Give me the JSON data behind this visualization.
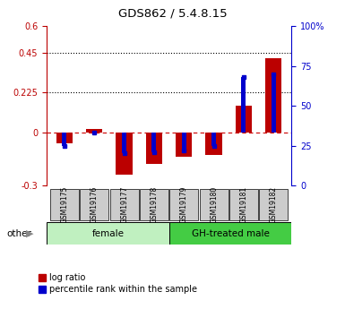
{
  "title": "GDS862 / 5.4.8.15",
  "samples": [
    "GSM19175",
    "GSM19176",
    "GSM19177",
    "GSM19178",
    "GSM19179",
    "GSM19180",
    "GSM19181",
    "GSM19182"
  ],
  "log_ratio": [
    -0.06,
    0.02,
    -0.24,
    -0.18,
    -0.14,
    -0.13,
    0.15,
    0.42
  ],
  "percentile_rank": [
    25,
    33,
    20,
    21,
    22,
    25,
    68,
    70
  ],
  "ylim_left": [
    -0.3,
    0.6
  ],
  "ylim_right": [
    0,
    100
  ],
  "yticks_left": [
    -0.3,
    0,
    0.225,
    0.45,
    0.6
  ],
  "yticks_right": [
    0,
    25,
    50,
    75,
    100
  ],
  "hlines": [
    0.225,
    0.45
  ],
  "groups": [
    {
      "label": "female",
      "start": 0,
      "end": 4,
      "color": "#c0f0c0"
    },
    {
      "label": "GH-treated male",
      "start": 4,
      "end": 8,
      "color": "#44cc44"
    }
  ],
  "bar_color_red": "#bb0000",
  "bar_color_blue": "#0000cc",
  "zero_line_color": "#cc0000",
  "background_color": "#ffffff",
  "other_label": "other",
  "legend_log_ratio": "log ratio",
  "legend_percentile": "percentile rank within the sample",
  "bar_width": 0.55,
  "blue_bar_width": 0.15
}
